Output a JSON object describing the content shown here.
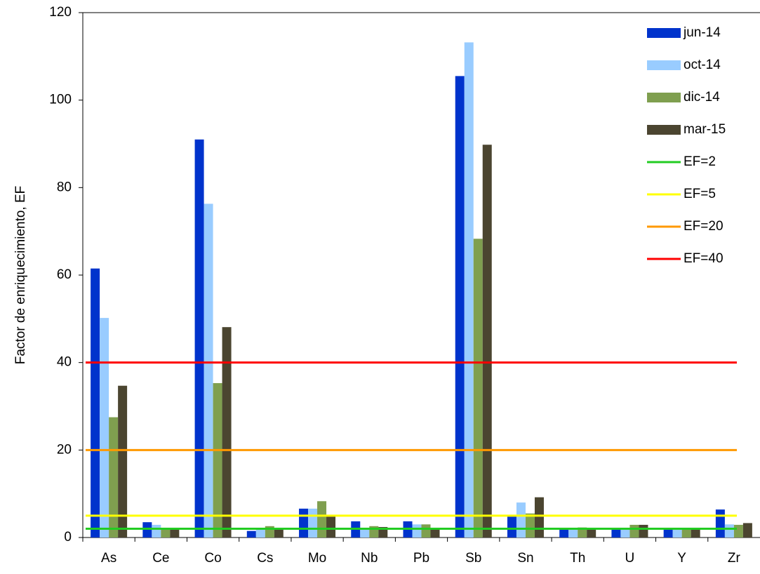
{
  "chart_data": {
    "type": "bar",
    "y_label": "Factor de enriquecimiento, EF",
    "categories": [
      "As",
      "Ce",
      "Co",
      "Cs",
      "Mo",
      "Nb",
      "Pb",
      "Sb",
      "Sn",
      "Th",
      "U",
      "Y",
      "Zr"
    ],
    "series": [
      {
        "name": "jun-14",
        "color": "#0033cc",
        "values": [
          61.5,
          3.5,
          91,
          1.5,
          6.6,
          3.7,
          3.7,
          105.5,
          4.8,
          2.0,
          2.1,
          2.0,
          6.4
        ]
      },
      {
        "name": "oct-14",
        "color": "#99ccff",
        "values": [
          50.2,
          2.9,
          76.3,
          1.9,
          6.6,
          2.2,
          3.0,
          113.2,
          8.0,
          2.1,
          2.0,
          2.0,
          3.0
        ]
      },
      {
        "name": "dic-14",
        "color": "#7f9f4f",
        "values": [
          27.5,
          2.2,
          35.3,
          2.6,
          8.3,
          2.6,
          3.0,
          68.3,
          5.5,
          2.3,
          2.9,
          2.0,
          2.9
        ]
      },
      {
        "name": "mar-15",
        "color": "#4b4530",
        "values": [
          34.7,
          2.1,
          48.1,
          2.1,
          4.8,
          2.4,
          2.1,
          89.8,
          9.2,
          2.0,
          2.9,
          2.0,
          3.3
        ]
      }
    ],
    "reference_lines": [
      {
        "name": "EF=2",
        "value": 2,
        "color": "#22cc22"
      },
      {
        "name": "EF=5",
        "value": 5,
        "color": "#ffff00"
      },
      {
        "name": "EF=20",
        "value": 20,
        "color": "#ff9900"
      },
      {
        "name": "EF=40",
        "value": 40,
        "color": "#ff0000"
      }
    ],
    "ylim": [
      0,
      120
    ],
    "yticks": [
      0,
      20,
      40,
      60,
      80,
      100,
      120
    ],
    "grid": false,
    "legend": "upper right"
  }
}
